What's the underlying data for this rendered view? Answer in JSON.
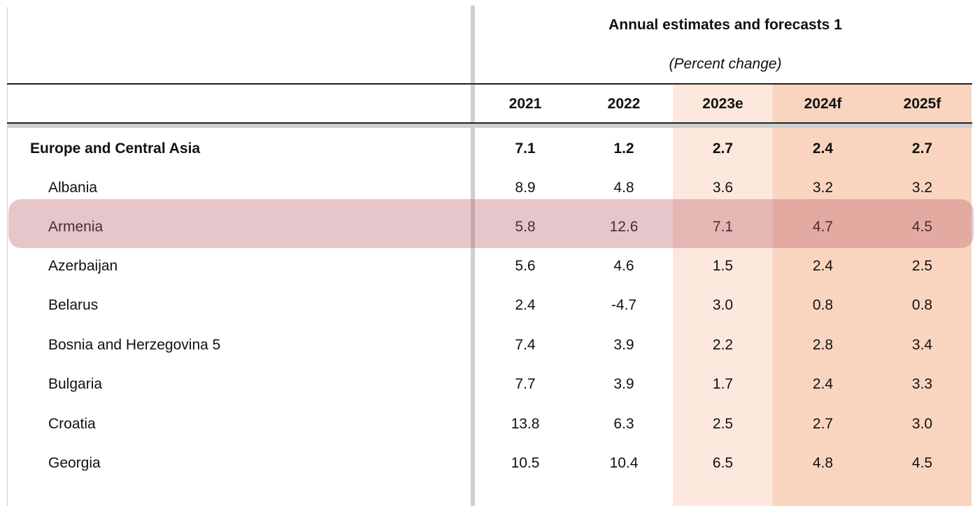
{
  "header": {
    "title": "Annual estimates and forecasts 1",
    "subtitle": "(Percent change)"
  },
  "columns": [
    "2021",
    "2022",
    "2023e",
    "2024f",
    "2025f"
  ],
  "rows": [
    {
      "label": "Europe and Central Asia",
      "values": [
        "7.1",
        "1.2",
        "2.7",
        "2.4",
        "2.7"
      ]
    },
    {
      "label": "Albania",
      "values": [
        "8.9",
        "4.8",
        "3.6",
        "3.2",
        "3.2"
      ]
    },
    {
      "label": "Armenia",
      "values": [
        "5.8",
        "12.6",
        "7.1",
        "4.7",
        "4.5"
      ]
    },
    {
      "label": "Azerbaijan",
      "values": [
        "5.6",
        "4.6",
        "1.5",
        "2.4",
        "2.5"
      ]
    },
    {
      "label": "Belarus",
      "values": [
        "2.4",
        "-4.7",
        "3.0",
        "0.8",
        "0.8"
      ]
    },
    {
      "label": "Bosnia and Herzegovina 5",
      "values": [
        "7.4",
        "3.9",
        "2.2",
        "2.8",
        "3.4"
      ]
    },
    {
      "label": "Bulgaria",
      "values": [
        "7.7",
        "3.9",
        "1.7",
        "2.4",
        "3.3"
      ]
    },
    {
      "label": "Croatia",
      "values": [
        "13.8",
        "6.3",
        "2.5",
        "2.7",
        "3.0"
      ]
    },
    {
      "label": "Georgia",
      "values": [
        "10.5",
        "10.4",
        "6.5",
        "4.8",
        "4.5"
      ]
    }
  ],
  "colors": {
    "estimate_shade": "#fce8dc",
    "forecast_shade": "#f9d5bf",
    "highlight": "#ba5c6a"
  }
}
